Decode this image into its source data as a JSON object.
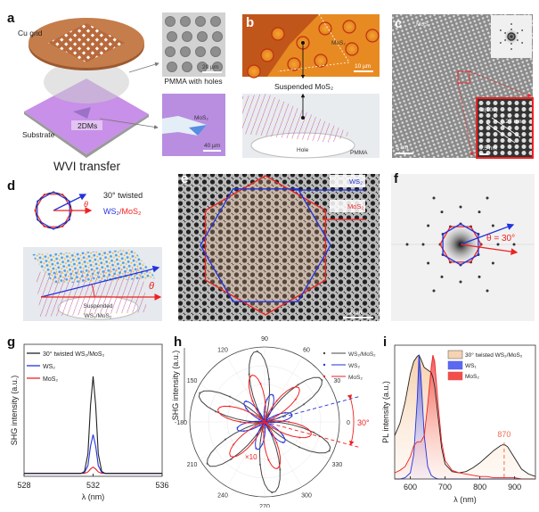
{
  "panels": {
    "a": {
      "letter": "a",
      "cu_grid": "Cu grid",
      "substrate": "Substrate",
      "twodms": "2DMs",
      "caption": "WVI transfer",
      "pmma_caption": "PMMA with holes",
      "pmma_scale": "20 µm",
      "mos2_label": "MoS₂",
      "mos2_scale": "40 µm"
    },
    "b": {
      "letter": "b",
      "mos2_label": "MoS₂",
      "scale": "10 µm",
      "suspended": "Suspended MoS₂",
      "hole": "Hole",
      "pmma": "PMMA"
    },
    "c": {
      "letter": "c",
      "mos2_label": "MoS₂",
      "scale": "5 nm",
      "d_label": "d(100)",
      "spacing": "0.27 nm",
      "inset_scale": "0.5 nm"
    },
    "d": {
      "letter": "d",
      "twisted": "30°  twisted",
      "ws2": "WS₂",
      "slash_mos2": "/MoS₂",
      "theta": "θ",
      "suspended1": "Suspended",
      "suspended2": "WS₂/MoS₂"
    },
    "e": {
      "letter": "e",
      "ws2": "WS₂",
      "mos2": "MoS₂",
      "scale": "2 nm"
    },
    "f": {
      "letter": "f",
      "theta": "θ = 30°"
    },
    "g": {
      "letter": "g"
    },
    "h": {
      "letter": "h"
    },
    "i": {
      "letter": "i"
    }
  },
  "colors": {
    "ws2": "#2233dd",
    "mos2": "#ee2222",
    "twisted": "#222222",
    "accent_870": "#f07050"
  },
  "chart_data": [
    {
      "id": "g",
      "type": "line",
      "xlabel": "λ (nm)",
      "ylabel": "SHG intensity (a.u.)",
      "xlim": [
        528,
        536
      ],
      "xticks": [
        "528",
        "532",
        "536"
      ],
      "ylim": [
        -0.03,
        1.33
      ],
      "legend": "top-left",
      "x": [
        528,
        531.3,
        531.5,
        531.7,
        531.85,
        532,
        532.15,
        532.3,
        532.5,
        532.7,
        536
      ],
      "series": [
        {
          "name": "30° twisted WS₂/MoS₂",
          "color": "#222222",
          "values": [
            0,
            0,
            0.02,
            0.2,
            0.7,
            1.0,
            0.7,
            0.2,
            0.02,
            0,
            0
          ]
        },
        {
          "name": "WS₂",
          "color": "#2233dd",
          "values": [
            0,
            0,
            0.01,
            0.08,
            0.28,
            0.4,
            0.28,
            0.08,
            0.01,
            0,
            0
          ]
        },
        {
          "name": "MoS₂",
          "color": "#ee2222",
          "values": [
            0,
            0,
            0,
            0.015,
            0.045,
            0.065,
            0.045,
            0.015,
            0,
            0,
            0
          ]
        }
      ]
    },
    {
      "id": "h",
      "type": "polar",
      "ylabel": "SHG intensity (a.u.)",
      "angle_ticks": [
        "90",
        "60",
        "30",
        "0",
        "330",
        "300",
        "270",
        "240",
        "210",
        "-180",
        "150",
        "120"
      ],
      "legend": "top-right",
      "series": [
        {
          "name": "WS₂/MoS₂",
          "color": "#444444",
          "max_angles_deg": [
            37,
            97,
            157,
            217,
            277,
            337
          ],
          "relative_intensity": 1.0
        },
        {
          "name": "WS₂",
          "color": "#2233dd",
          "max_angles_deg": [
            15,
            75,
            135,
            195,
            255,
            315
          ],
          "relative_intensity": 0.4
        },
        {
          "name": "MoS₂",
          "color": "#ee2222",
          "max_angles_deg": [
            45,
            105,
            165,
            225,
            285,
            345
          ],
          "relative_intensity": 0.68
        }
      ],
      "annotations": {
        "scale_factor": "×10",
        "twist_angle": "30°"
      }
    },
    {
      "id": "i",
      "type": "area",
      "xlabel": "λ (nm)",
      "ylabel": "PL intensity (a.u.)",
      "xlim": [
        555,
        960
      ],
      "xticks": [
        "600",
        "700",
        "800",
        "900"
      ],
      "ylim": [
        0,
        1.08
      ],
      "legend": "top-right",
      "x": [
        555,
        570,
        585,
        600,
        610,
        620,
        625,
        630,
        640,
        650,
        660,
        665,
        670,
        680,
        690,
        700,
        720,
        740,
        760,
        780,
        800,
        820,
        840,
        860,
        870,
        880,
        900,
        920,
        940,
        960
      ],
      "series": [
        {
          "name": "30° twisted WS₂/MoS₂",
          "color": "#222222",
          "fill": "#f5c9a0",
          "values": [
            0.35,
            0.45,
            0.62,
            0.85,
            0.95,
            0.99,
            1.0,
            0.97,
            0.9,
            0.88,
            0.86,
            0.82,
            0.75,
            0.5,
            0.25,
            0.12,
            0.06,
            0.05,
            0.06,
            0.09,
            0.13,
            0.18,
            0.23,
            0.27,
            0.28,
            0.26,
            0.17,
            0.08,
            0.04,
            0.02
          ]
        },
        {
          "name": "WS₁",
          "color": "#2233dd",
          "fill": "#3344ee",
          "values": [
            0,
            0,
            0.01,
            0.05,
            0.2,
            0.65,
            1.0,
            0.85,
            0.35,
            0.1,
            0.03,
            0.02,
            0.01,
            0,
            0,
            0,
            0,
            0,
            0,
            0,
            0,
            0,
            0,
            0,
            0,
            0,
            0,
            0,
            0,
            0
          ]
        },
        {
          "name": "MoS₂",
          "color": "#ee2222",
          "fill": "#ee2222",
          "values": [
            0.05,
            0.07,
            0.1,
            0.18,
            0.27,
            0.3,
            0.3,
            0.3,
            0.35,
            0.6,
            0.9,
            1.0,
            0.95,
            0.6,
            0.3,
            0.15,
            0.07,
            0.05,
            0.04,
            0.03,
            0.02,
            0.02,
            0.01,
            0.01,
            0.01,
            0.01,
            0.01,
            0,
            0,
            0
          ]
        }
      ],
      "annotations": {
        "peak_label": "870",
        "peak_x": 870
      }
    }
  ]
}
